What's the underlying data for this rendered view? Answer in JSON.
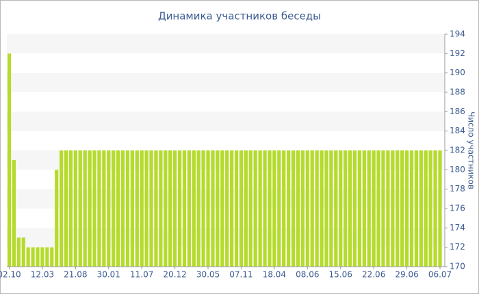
{
  "chart_data": {
    "type": "bar",
    "title": "Динамика участников беседы",
    "y_label": "Число участников",
    "categories": [
      "02.10",
      null,
      null,
      null,
      null,
      null,
      null,
      "12.03",
      null,
      null,
      null,
      null,
      null,
      null,
      "21.08",
      null,
      null,
      null,
      null,
      null,
      null,
      "30.01",
      null,
      null,
      null,
      null,
      null,
      null,
      "11.07",
      null,
      null,
      null,
      null,
      null,
      null,
      "20.12",
      null,
      null,
      null,
      null,
      null,
      null,
      "30.05",
      null,
      null,
      null,
      null,
      null,
      null,
      "07.11",
      null,
      null,
      null,
      null,
      null,
      null,
      "18.04",
      null,
      null,
      null,
      null,
      null,
      null,
      "08.06",
      null,
      null,
      null,
      null,
      null,
      null,
      "15.06",
      null,
      null,
      null,
      null,
      null,
      null,
      "22.06",
      null,
      null,
      null,
      null,
      null,
      null,
      "29.06",
      null,
      null,
      null,
      null,
      null,
      null,
      "06.07"
    ],
    "values": [
      192,
      181,
      173,
      173,
      172,
      172,
      172,
      172,
      172,
      172,
      180,
      182,
      182,
      182,
      182,
      182,
      182,
      182,
      182,
      182,
      182,
      182,
      182,
      182,
      182,
      182,
      182,
      182,
      182,
      182,
      182,
      182,
      182,
      182,
      182,
      182,
      182,
      182,
      182,
      182,
      182,
      182,
      182,
      182,
      182,
      182,
      182,
      182,
      182,
      182,
      182,
      182,
      182,
      182,
      182,
      182,
      182,
      182,
      182,
      182,
      182,
      182,
      182,
      182,
      182,
      182,
      182,
      182,
      182,
      182,
      182,
      182,
      182,
      182,
      182,
      182,
      182,
      182,
      182,
      182,
      182,
      182,
      182,
      182,
      182,
      182,
      182,
      182,
      182,
      182,
      182,
      182
    ],
    "color": "#b5db2b",
    "ylim": [
      170,
      194
    ],
    "yticks": [
      170,
      172,
      174,
      176,
      178,
      180,
      182,
      184,
      186,
      188,
      190,
      192,
      194
    ],
    "grid": true,
    "y_axis_side": "right"
  }
}
